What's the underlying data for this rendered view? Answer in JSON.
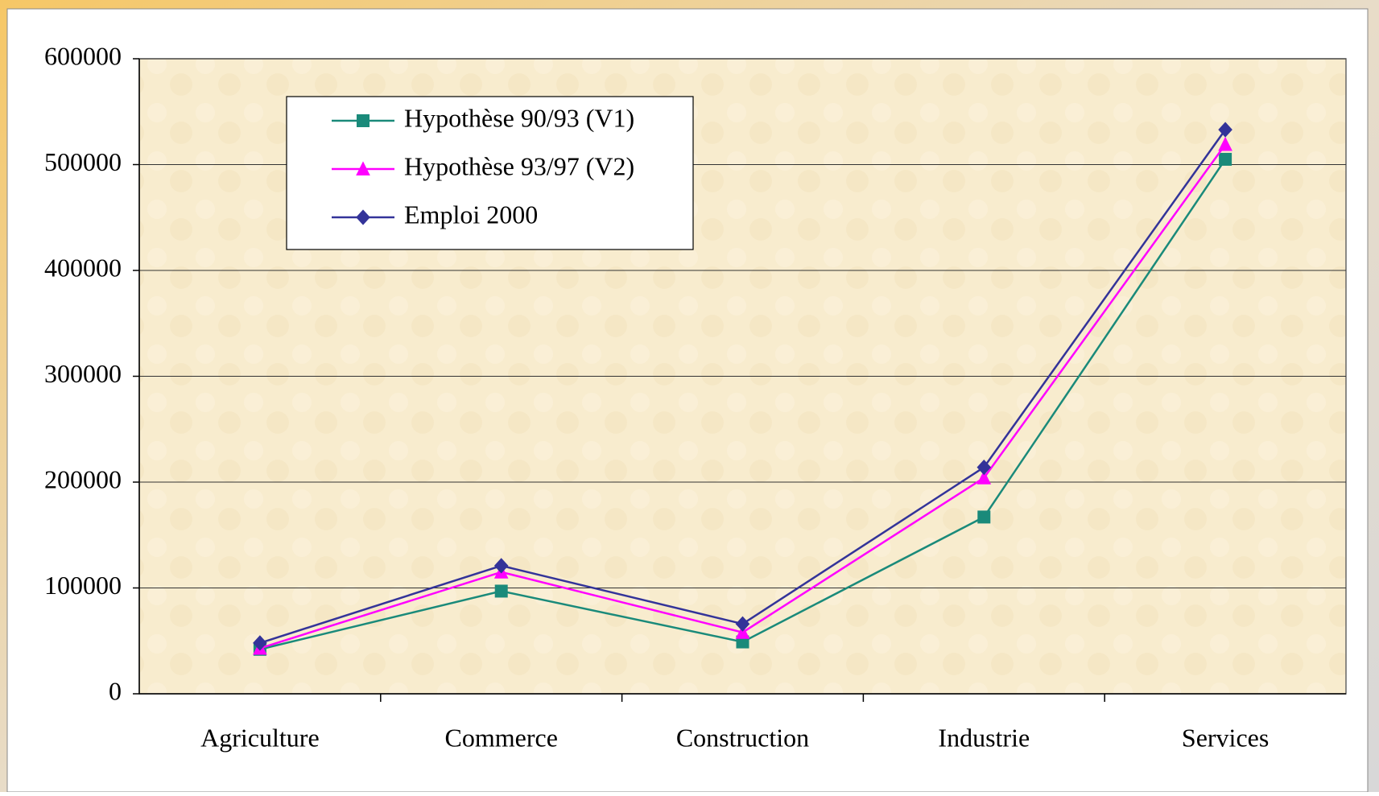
{
  "chart_data": {
    "type": "line",
    "categories": [
      "Agriculture",
      "Commerce",
      "Construction",
      "Industrie",
      "Services"
    ],
    "series": [
      {
        "name": "Hypothèse 90/93 (V1)",
        "color": "#1a8a7a",
        "marker": "square",
        "values": [
          42000,
          97000,
          49000,
          167000,
          505000
        ]
      },
      {
        "name": "Hypothèse 93/97 (V2)",
        "color": "#ff00ff",
        "marker": "triangle",
        "values": [
          43000,
          115000,
          58000,
          204000,
          519000
        ]
      },
      {
        "name": "Emploi 2000",
        "color": "#333399",
        "marker": "diamond",
        "values": [
          48000,
          121000,
          66000,
          214000,
          533000
        ]
      }
    ],
    "ylim": [
      0,
      600000
    ],
    "yticks": [
      0,
      100000,
      200000,
      300000,
      400000,
      500000,
      600000
    ],
    "grid": true,
    "legend": "upper left"
  }
}
